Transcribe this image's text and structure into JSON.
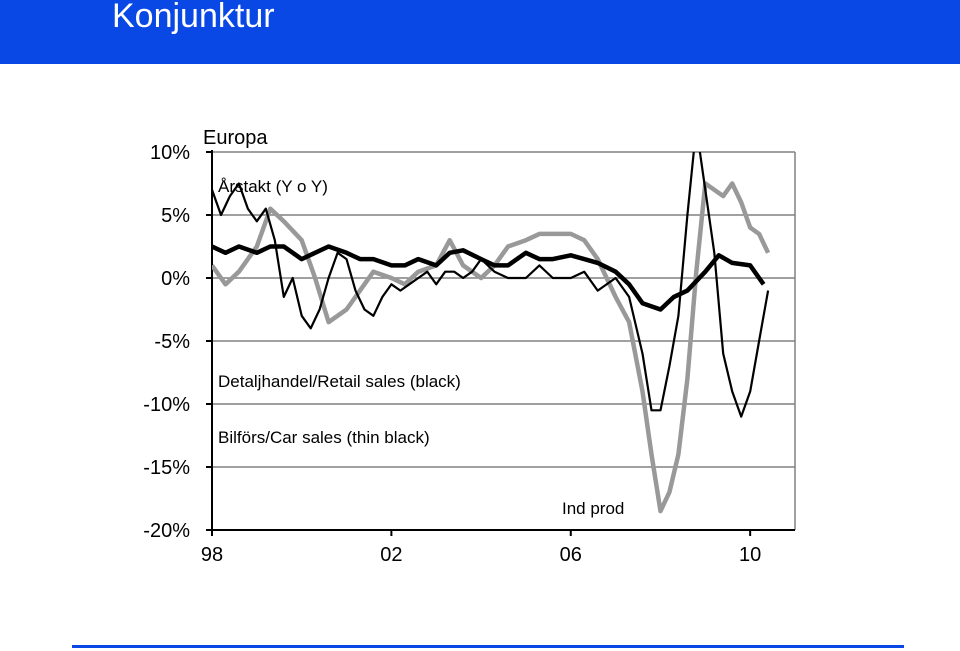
{
  "header": {
    "title": "Konjunktur"
  },
  "colors": {
    "header_bg": "#0a48e6",
    "grid": "#808080",
    "retail": "#000000",
    "car": "#000000",
    "indprod": "#999999"
  },
  "chart_data": {
    "type": "line",
    "title": "Europa",
    "subtitle": "Årstakt (Y o Y)",
    "xlabel": "",
    "ylabel": "",
    "xlim": [
      1998,
      2011
    ],
    "ylim": [
      -20,
      10
    ],
    "y_ticks": [
      10,
      5,
      0,
      -5,
      -10,
      -15,
      -20
    ],
    "y_tick_labels": [
      "10%",
      "5%",
      "0%",
      "-5%",
      "-10%",
      "-15%",
      "-20%"
    ],
    "x_ticks": [
      1998,
      2002,
      2006,
      2010
    ],
    "x_tick_labels": [
      "98",
      "02",
      "06",
      "10"
    ],
    "grid": true,
    "annotations": [
      {
        "text": "Detaljhandel/Retail sales (black)",
        "series": "retail"
      },
      {
        "text": "Bilförs/Car sales (thin black)",
        "series": "car"
      },
      {
        "text": "Ind prod",
        "series": "indprod"
      }
    ],
    "series": [
      {
        "id": "retail",
        "x": [
          1998.0,
          1998.3,
          1998.6,
          1999.0,
          1999.3,
          1999.6,
          2000.0,
          2000.3,
          2000.6,
          2001.0,
          2001.3,
          2001.6,
          2002.0,
          2002.3,
          2002.6,
          2003.0,
          2003.3,
          2003.6,
          2004.0,
          2004.3,
          2004.6,
          2005.0,
          2005.3,
          2005.6,
          2006.0,
          2006.3,
          2006.6,
          2007.0,
          2007.3,
          2007.6,
          2008.0,
          2008.3,
          2008.6,
          2009.0,
          2009.3,
          2009.6,
          2010.0,
          2010.3
        ],
        "y": [
          2.5,
          2.0,
          2.5,
          2.0,
          2.5,
          2.5,
          1.5,
          2.0,
          2.5,
          2.0,
          1.5,
          1.5,
          1.0,
          1.0,
          1.5,
          1.0,
          2.0,
          2.2,
          1.5,
          1.0,
          1.0,
          2.0,
          1.5,
          1.5,
          1.8,
          1.5,
          1.2,
          0.5,
          -0.5,
          -2.0,
          -2.5,
          -1.5,
          -1.0,
          0.5,
          1.8,
          1.2,
          1.0,
          -0.5
        ]
      },
      {
        "id": "car",
        "x": [
          1998.0,
          1998.2,
          1998.4,
          1998.6,
          1998.8,
          1999.0,
          1999.2,
          1999.4,
          1999.6,
          1999.8,
          2000.0,
          2000.2,
          2000.4,
          2000.6,
          2000.8,
          2001.0,
          2001.2,
          2001.4,
          2001.6,
          2001.8,
          2002.0,
          2002.2,
          2002.4,
          2002.6,
          2002.8,
          2003.0,
          2003.2,
          2003.4,
          2003.6,
          2003.8,
          2004.0,
          2004.3,
          2004.6,
          2005.0,
          2005.3,
          2005.6,
          2006.0,
          2006.3,
          2006.6,
          2007.0,
          2007.3,
          2007.6,
          2007.8,
          2008.0,
          2008.2,
          2008.4,
          2008.6,
          2008.8,
          2009.0,
          2009.2,
          2009.4,
          2009.6,
          2009.8,
          2010.0,
          2010.2,
          2010.4
        ],
        "y": [
          7.0,
          5.0,
          6.5,
          7.5,
          5.5,
          4.5,
          5.5,
          3.0,
          -1.5,
          0.0,
          -3.0,
          -4.0,
          -2.5,
          0.0,
          2.0,
          1.5,
          -1.0,
          -2.5,
          -3.0,
          -1.5,
          -0.5,
          -1.0,
          -0.5,
          0.0,
          0.5,
          -0.5,
          0.5,
          0.5,
          0.0,
          0.5,
          1.5,
          0.5,
          0.0,
          0.0,
          1.0,
          0.0,
          0.0,
          0.5,
          -1.0,
          0.0,
          -1.5,
          -6.0,
          -10.5,
          -10.5,
          -7.0,
          -3.0,
          5.0,
          12.0,
          7.0,
          2.0,
          -6.0,
          -9.0,
          -11.0,
          -9.0,
          -5.0,
          -1.0
        ]
      },
      {
        "id": "indprod",
        "x": [
          1998.0,
          1998.3,
          1998.6,
          1999.0,
          1999.3,
          1999.6,
          2000.0,
          2000.3,
          2000.6,
          2001.0,
          2001.3,
          2001.6,
          2002.0,
          2002.3,
          2002.6,
          2003.0,
          2003.3,
          2003.6,
          2004.0,
          2004.3,
          2004.6,
          2005.0,
          2005.3,
          2005.6,
          2006.0,
          2006.3,
          2006.6,
          2007.0,
          2007.3,
          2007.6,
          2007.8,
          2008.0,
          2008.2,
          2008.4,
          2008.6,
          2008.8,
          2009.0,
          2009.2,
          2009.4,
          2009.6,
          2009.8,
          2010.0,
          2010.2,
          2010.4
        ],
        "y": [
          1.0,
          -0.5,
          0.5,
          2.5,
          5.5,
          4.5,
          3.0,
          0.0,
          -3.5,
          -2.5,
          -1.0,
          0.5,
          0.0,
          -0.5,
          0.5,
          1.0,
          3.0,
          1.0,
          0.0,
          1.0,
          2.5,
          3.0,
          3.5,
          3.5,
          3.5,
          3.0,
          1.5,
          -1.5,
          -3.5,
          -9.0,
          -14.0,
          -18.5,
          -17.0,
          -14.0,
          -8.0,
          0.5,
          7.5,
          7.0,
          6.5,
          7.5,
          6.0,
          4.0,
          3.5,
          2.0
        ]
      }
    ]
  }
}
